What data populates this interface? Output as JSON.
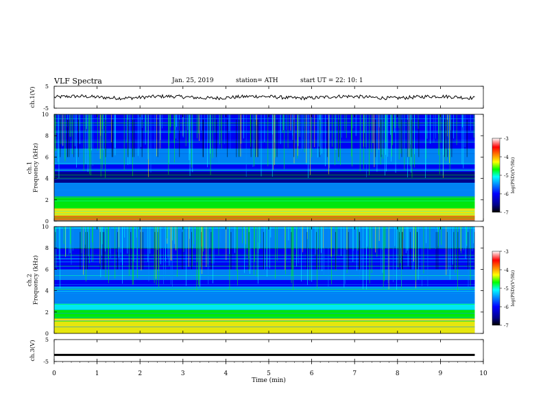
{
  "header": {
    "title": "VLF  Spectra",
    "date": "Jan. 25, 2019",
    "station": "station= ATH",
    "start": "start  UT  =    22: 10: 1"
  },
  "chart_data": [
    {
      "type": "line",
      "panel": "ch1-voltage",
      "ylabel": "ch.1(V)",
      "ylim": [
        -5,
        5
      ],
      "yticks": [
        "5",
        "-5"
      ],
      "series": [
        {
          "x_range": [
            0,
            9.8
          ],
          "level": 0,
          "noise": "small jitter"
        }
      ],
      "grid": false
    },
    {
      "type": "heatmap",
      "panel": "ch1-spectrogram",
      "ylabel": "ch.1\nFrequency (kHz)",
      "ylim": [
        0,
        10
      ],
      "yticks": [
        "0",
        "2",
        "4",
        "6",
        "8",
        "10"
      ],
      "x_range": [
        0,
        9.8
      ],
      "colorbar": {
        "label": "log(PSD)(V²/Hz)",
        "range": [
          -7,
          -3
        ],
        "ticks": [
          "-3",
          "-4",
          "-5",
          "-6",
          "-7"
        ]
      }
    },
    {
      "type": "heatmap",
      "panel": "ch2-spectrogram",
      "ylabel": "ch.2\nFrequency (kHz)",
      "ylim": [
        0,
        10
      ],
      "yticks": [
        "0",
        "2",
        "4",
        "6",
        "8",
        "10"
      ],
      "x_range": [
        0,
        9.8
      ],
      "colorbar": {
        "label": "log(PSD)(V²/Hz)",
        "range": [
          -7,
          -3
        ],
        "ticks": [
          "-3",
          "-4",
          "-5",
          "-6",
          "-7"
        ]
      }
    },
    {
      "type": "line",
      "panel": "ch3-voltage",
      "ylabel": "ch.3(V)",
      "ylim": [
        -5,
        5
      ],
      "yticks": [
        "5",
        "-5"
      ],
      "series": [
        {
          "x_range": [
            0,
            9.8
          ],
          "level": -2
        }
      ],
      "grid": false
    }
  ],
  "xaxis": {
    "label": "Time  (min)",
    "range": [
      0,
      10
    ],
    "ticks": [
      "0",
      "1",
      "2",
      "3",
      "4",
      "5",
      "6",
      "7",
      "8",
      "9",
      "10"
    ]
  },
  "colors": {
    "scale": [
      "#000000",
      "#00008b",
      "#0000ff",
      "#0090ff",
      "#00ffff",
      "#00ff00",
      "#ffff00",
      "#ff8000",
      "#ff0000",
      "#ffffff"
    ]
  }
}
